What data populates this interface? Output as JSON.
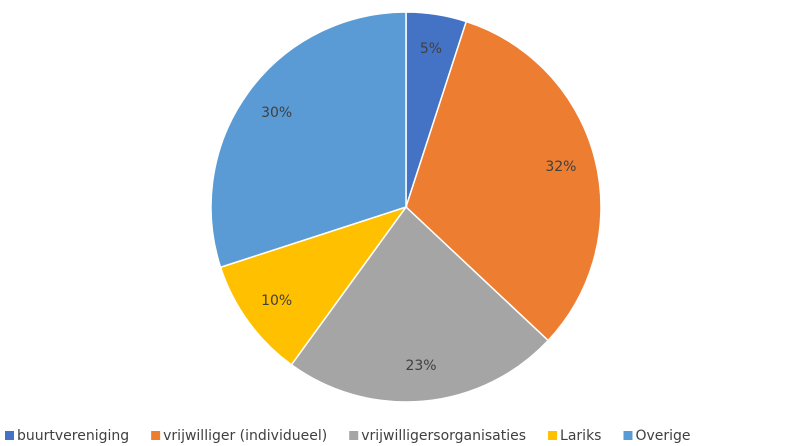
{
  "chart_data": {
    "type": "pie",
    "categories": [
      "buurtvereniging",
      "vrijwilliger (individueel)",
      "vrijwilligersorganisaties",
      "Lariks",
      "Overige"
    ],
    "values": [
      5,
      32,
      23,
      10,
      30
    ],
    "value_labels": [
      "5%",
      "32%",
      "23%",
      "10%",
      "30%"
    ],
    "colors": [
      "#4472c4",
      "#ed7d31",
      "#a5a5a5",
      "#ffc000",
      "#5b9bd5"
    ],
    "legend": "bottom"
  }
}
